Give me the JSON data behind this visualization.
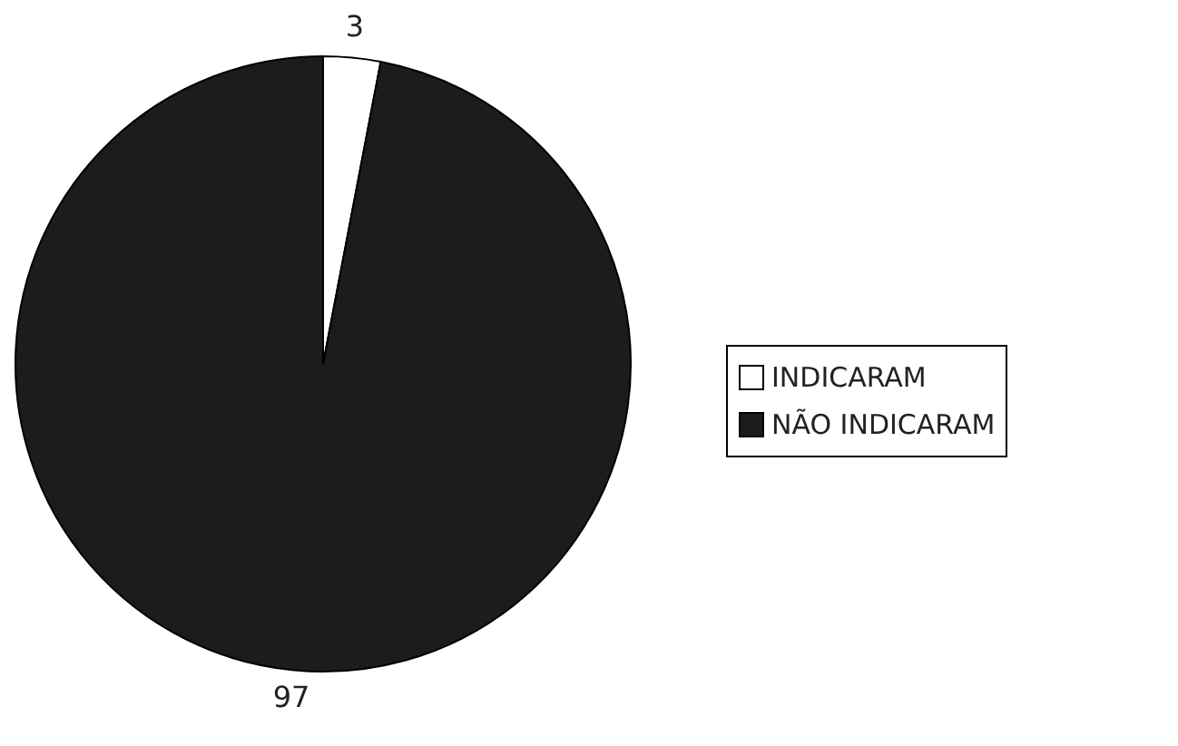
{
  "chart_data": {
    "type": "pie",
    "categories": [
      "INDICARAM",
      "NÃO INDICARAM"
    ],
    "values": [
      3,
      97
    ],
    "colors": [
      "#ffffff",
      "#1c1c1c"
    ],
    "data_labels": true,
    "legend": "right"
  }
}
